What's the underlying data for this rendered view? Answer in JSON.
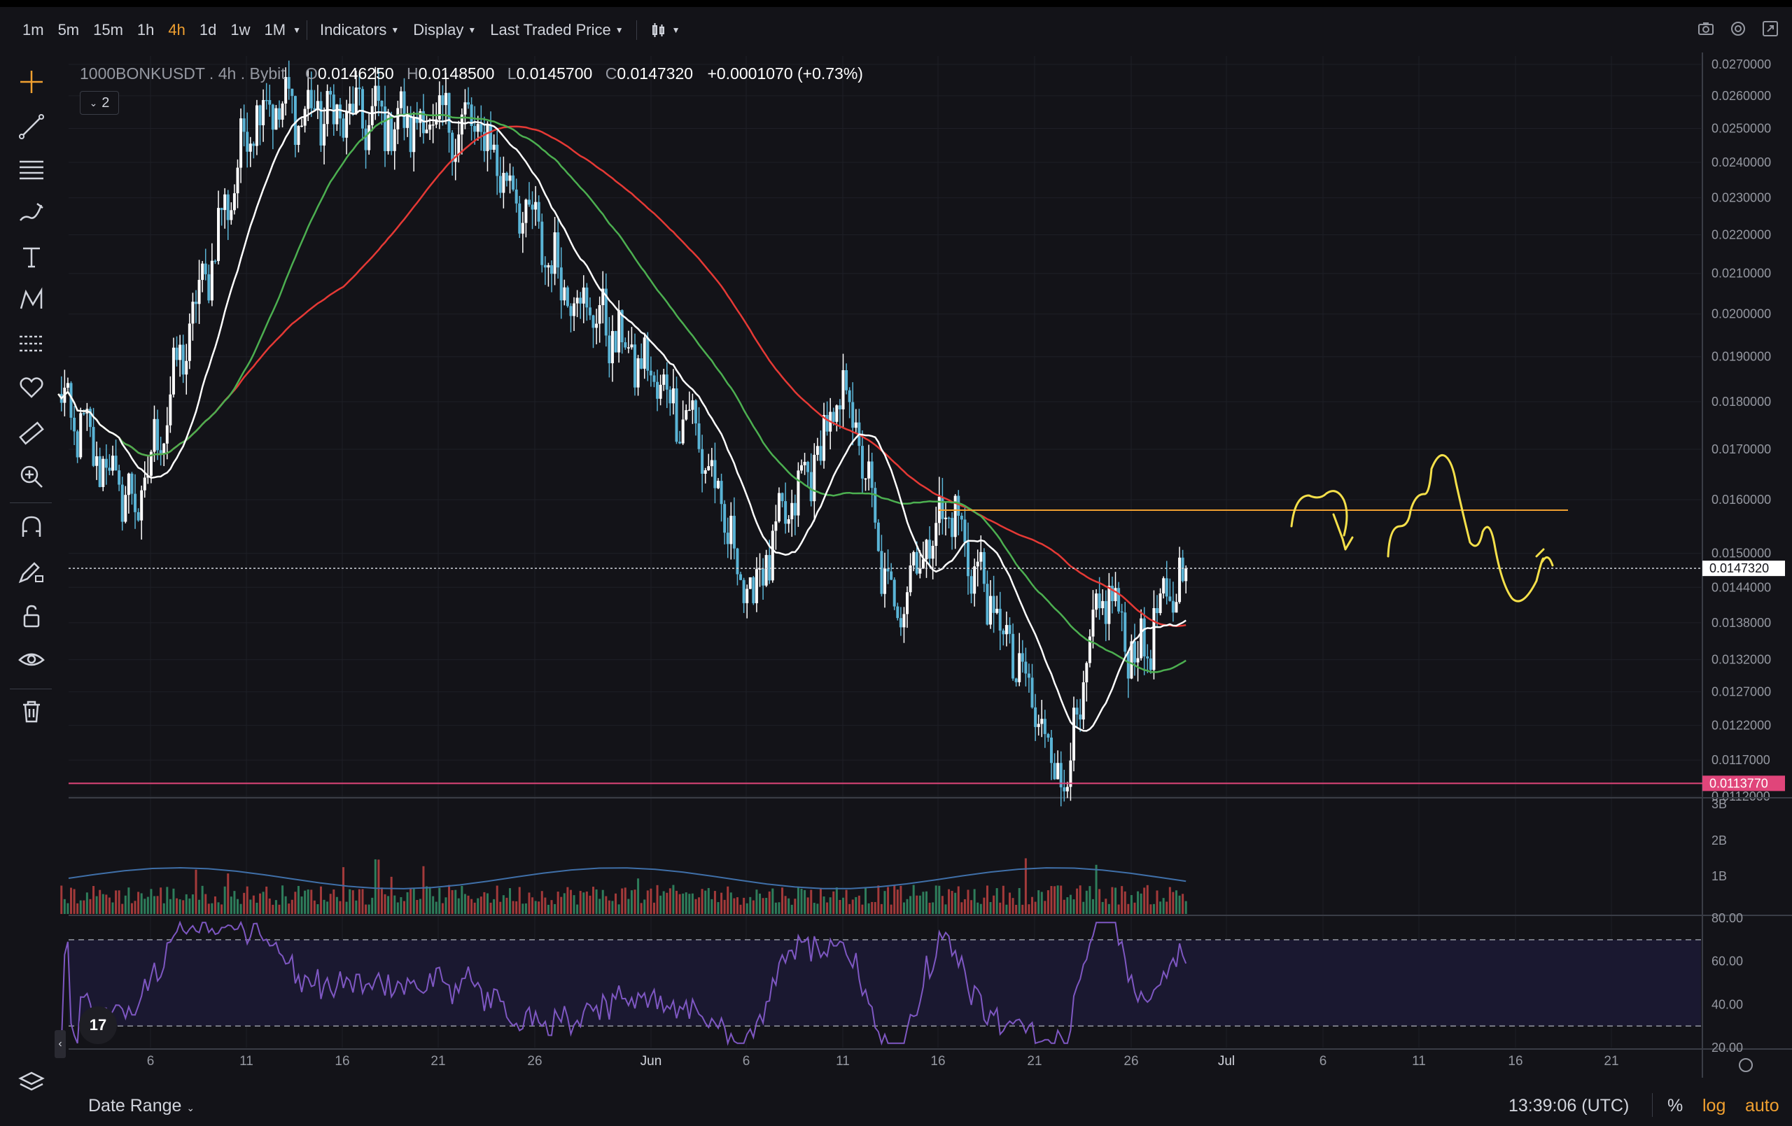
{
  "toolbar": {
    "timeframes": [
      "1m",
      "5m",
      "15m",
      "1h",
      "4h",
      "1d",
      "1w",
      "1M"
    ],
    "active_timeframe": "4h",
    "indicators_label": "Indicators",
    "display_label": "Display",
    "price_source_label": "Last Traded Price"
  },
  "legend": {
    "symbol": "1000BONKUSDT",
    "interval": "4h",
    "exchange": "Bybit",
    "open_label": "O",
    "open": "0.0146250",
    "high_label": "H",
    "high": "0.0148500",
    "low_label": "L",
    "low": "0.0145700",
    "close_label": "C",
    "close": "0.0147320",
    "change": "+0.0001070 (+0.73%)",
    "collapsed_count": "2"
  },
  "price_axis": {
    "labels": [
      "0.0270000",
      "0.0260000",
      "0.0250000",
      "0.0240000",
      "0.0230000",
      "0.0220000",
      "0.0210000",
      "0.0200000",
      "0.0190000",
      "0.0180000",
      "0.0170000",
      "0.0160000",
      "0.0150000",
      "0.0144000",
      "0.0138000",
      "0.0132000",
      "0.0127000",
      "0.0122000",
      "0.0117000",
      "0.0112000"
    ],
    "last_price_label": "0.0147320",
    "support_price_label": "0.0113770"
  },
  "volume_axis": {
    "labels": [
      "3B",
      "2B",
      "1B"
    ]
  },
  "rsi_axis": {
    "labels": [
      "80.00",
      "60.00",
      "40.00",
      "20.00"
    ]
  },
  "time_axis": {
    "labels": [
      "6",
      "11",
      "16",
      "21",
      "26",
      "Jun",
      "6",
      "11",
      "16",
      "21",
      "26",
      "Jul",
      "6",
      "11",
      "16",
      "21"
    ]
  },
  "colors": {
    "background": "#131318",
    "candle_up": "#ffffff",
    "candle_down": "#5ab4d6",
    "ma_white": "#ffffff",
    "ma_green": "#4caf50",
    "ma_red": "#e53935",
    "resistance_line": "#f0a030",
    "support_line": "#e0457a",
    "drawing": "#f5e04a",
    "rsi": "#7e57c2",
    "accent": "#f0a030"
  },
  "chart_data": {
    "type": "candlestick",
    "symbol": "1000BONKUSDT",
    "interval": "4h",
    "price_axis_scale": "log",
    "ylim": [
      0.0112,
      0.027
    ],
    "key_points": [
      {
        "time": "early May",
        "price": 0.018
      },
      {
        "time": "May 6",
        "price": 0.0158
      },
      {
        "time": "May 11",
        "price": 0.0258
      },
      {
        "time": "May 13",
        "price": 0.0255
      },
      {
        "time": "May 23",
        "price": 0.025
      },
      {
        "time": "May 27",
        "price": 0.021
      },
      {
        "time": "Jun 3",
        "price": 0.0175
      },
      {
        "time": "Jun 6",
        "price": 0.0142
      },
      {
        "time": "Jun 11",
        "price": 0.0183
      },
      {
        "time": "Jun 13",
        "price": 0.014
      },
      {
        "time": "Jun 16",
        "price": 0.0159
      },
      {
        "time": "Jun 22",
        "price": 0.011377
      },
      {
        "time": "Jun 24",
        "price": 0.0144
      },
      {
        "time": "Jun 26",
        "price": 0.0132
      },
      {
        "time": "Jun 29",
        "price": 0.014732
      }
    ],
    "horizontal_lines": [
      {
        "label": "resistance",
        "price": 0.0158
      },
      {
        "label": "support",
        "price": 0.011377
      },
      {
        "label": "last price",
        "price": 0.014732
      }
    ],
    "rsi_levels": [
      70,
      30
    ],
    "rsi_ylim": [
      20,
      80
    ],
    "volume_ylim": [
      0,
      3000000000
    ]
  },
  "bottom": {
    "date_range_label": "Date Range",
    "clock": "13:39:06 (UTC)",
    "percent_label": "%",
    "log_label": "log",
    "auto_label": "auto",
    "logo_text": "17"
  }
}
